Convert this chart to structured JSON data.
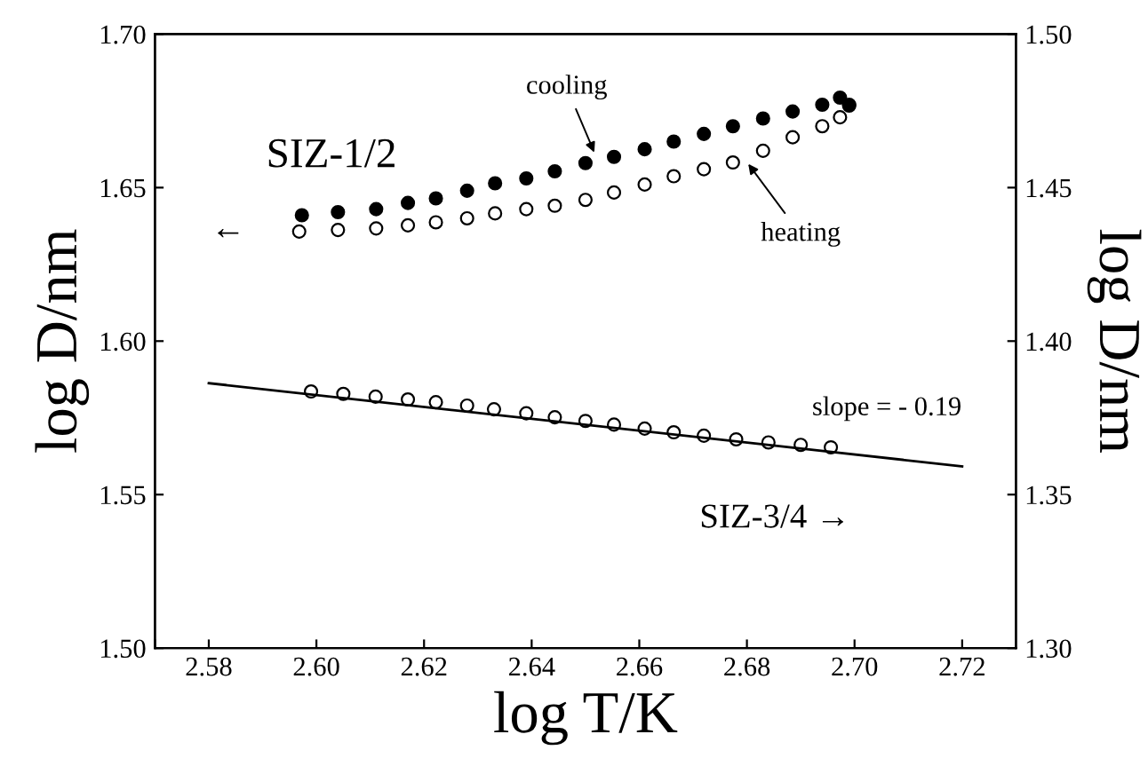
{
  "chart_data": {
    "type": "scatter",
    "xlabel": "log T/K",
    "ylabel": "log D/nm",
    "y2label": "log D/nm",
    "xlim": [
      2.57,
      2.73
    ],
    "xticks": [
      {
        "value": 2.57,
        "label": null
      },
      2.58,
      {
        "value": 2.6,
        "label": "2.60"
      },
      2.62,
      2.64,
      2.66,
      2.68,
      {
        "value": 2.7,
        "label": "2.70"
      },
      2.72
    ],
    "ylim": [
      1.5,
      1.7
    ],
    "yticks": [
      {
        "value": 1.5,
        "label": "1.50"
      },
      1.55,
      {
        "value": 1.6,
        "label": "1.60"
      },
      1.65,
      {
        "value": 1.7,
        "label": "1.70"
      }
    ],
    "y2lim": [
      1.3,
      1.5
    ],
    "y2ticks": [
      {
        "value": 1.3,
        "label": "1.30"
      },
      1.35,
      {
        "value": 1.4,
        "label": "1.40"
      },
      1.45,
      {
        "value": 1.5,
        "label": "1.50"
      }
    ],
    "grid": false,
    "legend": false,
    "marker": "circle",
    "series": [
      {
        "color": "#000000",
        "x": [
          2.5973,
          2.604,
          2.6111,
          2.617,
          2.6222,
          2.628,
          2.6332,
          2.639,
          2.6443,
          2.65,
          2.6553,
          2.661,
          2.6664,
          2.672,
          2.6774,
          2.683,
          2.6885,
          2.694,
          2.6973,
          2.699
        ],
        "values": [
          1.641,
          1.642,
          1.643,
          1.645,
          1.6465,
          1.649,
          1.6514,
          1.653,
          1.6553,
          1.658,
          1.66,
          1.6625,
          1.665,
          1.6675,
          1.67,
          1.6725,
          1.6748,
          1.677,
          1.6793,
          1.677
        ]
      },
      {
        "color": "#000000",
        "x": [
          2.5968,
          2.604,
          2.6111,
          2.617,
          2.6222,
          2.628,
          2.6332,
          2.639,
          2.6443,
          2.65,
          2.6553,
          2.661,
          2.6664,
          2.672,
          2.6774,
          2.683,
          2.6885,
          2.694,
          2.6973,
          2.699
        ],
        "values": [
          1.6357,
          1.6362,
          1.6367,
          1.6377,
          1.6387,
          1.64,
          1.6416,
          1.643,
          1.6441,
          1.646,
          1.6484,
          1.651,
          1.6537,
          1.656,
          1.6582,
          1.662,
          1.6664,
          1.67,
          1.6729,
          1.6767
        ]
      },
      {
        "color": "#000000",
        "axis": "y2",
        "x": [
          2.599,
          2.605,
          2.611,
          2.617,
          2.6222,
          2.628,
          2.633,
          2.639,
          2.6443,
          2.65,
          2.6553,
          2.661,
          2.6664,
          2.672,
          2.678,
          2.684,
          2.69,
          2.6956
        ],
        "values": [
          1.3836,
          1.3828,
          1.3819,
          1.381,
          1.3801,
          1.379,
          1.3778,
          1.3765,
          1.3752,
          1.374,
          1.3728,
          1.3715,
          1.3703,
          1.3692,
          1.368,
          1.367,
          1.3662,
          1.3654
        ]
      },
      {
        "type": "line",
        "marker": "none",
        "color": "#000000",
        "axis": "y2",
        "x": [
          2.58,
          2.72
        ],
        "values": [
          1.3863,
          1.3592
        ]
      }
    ],
    "annotations": [
      {
        "text": "cooling",
        "x": 2.652,
        "y": 1.66
      },
      {
        "text": "heating",
        "x": 2.6797,
        "y": 1.659
      },
      "SIZ-1/2",
      "←",
      "slope = - 0.19",
      "SIZ-3/4 →"
    ]
  }
}
